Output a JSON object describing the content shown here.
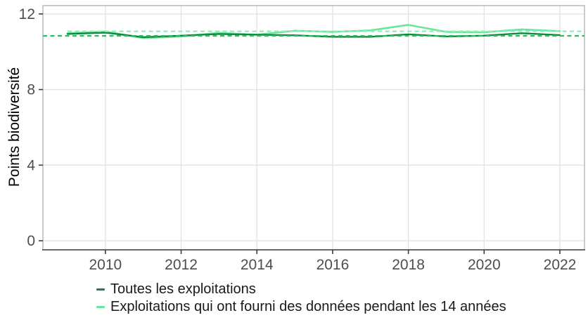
{
  "chart_data": {
    "type": "line",
    "title": "",
    "xlabel": "",
    "ylabel": "Points biodiversité",
    "x": [
      2009,
      2010,
      2011,
      2012,
      2013,
      2014,
      2015,
      2016,
      2017,
      2018,
      2019,
      2020,
      2021,
      2022
    ],
    "x_ticks": [
      2010,
      2012,
      2014,
      2016,
      2018,
      2020,
      2022
    ],
    "y_ticks": [
      0,
      4,
      8,
      12
    ],
    "xlim": [
      2008.35,
      2022.65
    ],
    "ylim": [
      -0.48,
      12.44
    ],
    "grid": true,
    "legend_position": "bottom-left",
    "series": [
      {
        "name": "Toutes les exploitations",
        "color": "#11893c",
        "width": 2.4,
        "values": [
          10.94,
          11.01,
          10.77,
          10.85,
          10.94,
          10.9,
          10.87,
          10.79,
          10.79,
          10.92,
          10.81,
          10.85,
          10.98,
          10.88
        ]
      },
      {
        "name": "Exploitations qui ont fourni des données pendant les 14 années",
        "color": "#68e79c",
        "width": 2.6,
        "values": [
          10.98,
          11.07,
          10.72,
          10.81,
          11.0,
          10.9,
          11.11,
          11.05,
          11.13,
          11.42,
          11.05,
          11.03,
          11.18,
          11.09
        ]
      }
    ],
    "ref_lines": [
      {
        "value": 11.08,
        "color": "#8feebb",
        "style": "dashed",
        "start_x": 2009,
        "series": "Exploitations qui ont fourni des données pendant les 14 années"
      },
      {
        "value": 10.84,
        "color": "#33b863",
        "style": "dashed",
        "start_x": null,
        "series": "Toutes les exploitations"
      }
    ]
  },
  "style": {
    "grid_color": "#e2e2e2",
    "panel_border_color": "#a8a8a8",
    "axis_line_color": "#3c3c3c",
    "tick_color": "#3c3c3c",
    "tick_label_color": "#4d4d4d",
    "background": "#ffffff"
  }
}
